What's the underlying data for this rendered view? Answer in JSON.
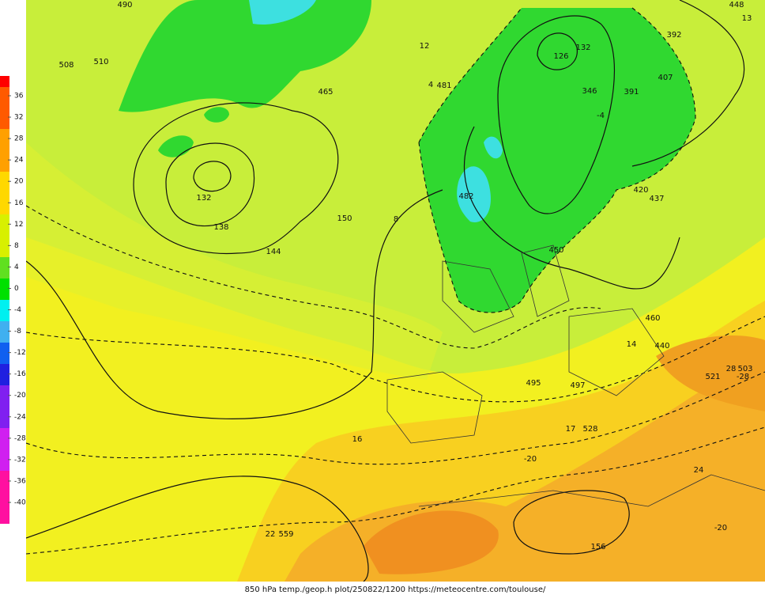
{
  "colorbar": {
    "ticks": [
      36,
      32,
      28,
      24,
      20,
      16,
      12,
      8,
      4,
      0,
      -4,
      -8,
      -12,
      -16,
      -20,
      -24,
      -28,
      -32,
      -36,
      -40
    ]
  },
  "caption": "850 hPa temp./geop.h plot/250822/1200 https://meteocentre.com/toulouse/",
  "map_labels": [
    "132",
    "138",
    "144",
    "150",
    "126",
    "132",
    "156",
    "16",
    "-20",
    "24",
    "-20",
    "22",
    "559",
    "17",
    "528",
    "14",
    "497",
    "495",
    "460",
    "440",
    "521",
    "503",
    "420",
    "437",
    "392",
    "391",
    "346",
    "407",
    "448",
    "13",
    "481",
    "482",
    "450",
    "465",
    "490",
    "510",
    "508",
    "12",
    "8",
    "-4",
    "4",
    "28",
    "-28"
  ]
}
